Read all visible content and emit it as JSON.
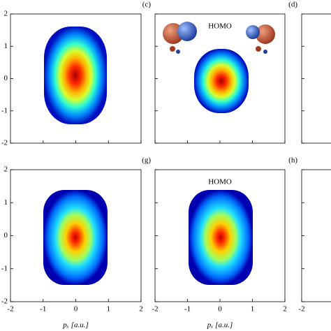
{
  "chart_data": [
    {
      "type": "heatmap",
      "xlim": [
        -2,
        2
      ],
      "ylim": [
        -2,
        2
      ],
      "xticks": [
        -2,
        -1,
        0,
        1,
        2
      ],
      "yticks": [
        2,
        1,
        0,
        -1,
        -2
      ],
      "x_tick_labels": false,
      "y_tick_labels": true
    },
    {
      "type": "heatmap",
      "label": "(c)",
      "annotation": "HOMO",
      "xlim": [
        -2,
        2
      ],
      "ylim": [
        -2,
        2
      ],
      "xticks": [
        -2,
        -1,
        0,
        1,
        2
      ],
      "yticks": [
        2,
        1,
        0,
        -1,
        -2
      ],
      "x_tick_labels": false,
      "y_tick_labels": false
    },
    {
      "type": "heatmap",
      "label": "(d)",
      "xlim": [
        -2,
        2
      ],
      "ylim": [
        -2,
        2
      ],
      "xticks": [
        -2
      ],
      "yticks": [
        2,
        1,
        0,
        -1,
        -2
      ],
      "x_tick_labels": false,
      "y_tick_labels": false
    },
    {
      "type": "heatmap",
      "xlabel": "pₓ [a.u.]",
      "xlim": [
        -2,
        2
      ],
      "ylim": [
        -2,
        2
      ],
      "xticks": [
        -2,
        -1,
        0,
        1,
        2
      ],
      "yticks": [
        2,
        1,
        0,
        -1,
        -2
      ],
      "x_tick_labels": true,
      "y_tick_labels": true
    },
    {
      "type": "heatmap",
      "label": "(g)",
      "annotation": "HOMO",
      "xlabel": "pₓ [a.u.]",
      "xlim": [
        -2,
        2
      ],
      "ylim": [
        -2,
        2
      ],
      "xticks": [
        -2,
        -1,
        0,
        1,
        2
      ],
      "yticks": [
        2,
        1,
        0,
        -1,
        -2
      ],
      "x_tick_labels": true,
      "y_tick_labels": false
    },
    {
      "type": "heatmap",
      "label": "(h)",
      "xlim": [
        -2,
        2
      ],
      "ylim": [
        -2,
        2
      ],
      "xticks": [
        -2
      ],
      "yticks": [
        2,
        1,
        0,
        -1,
        -2
      ],
      "x_tick_labels": true,
      "y_tick_labels": false
    }
  ]
}
